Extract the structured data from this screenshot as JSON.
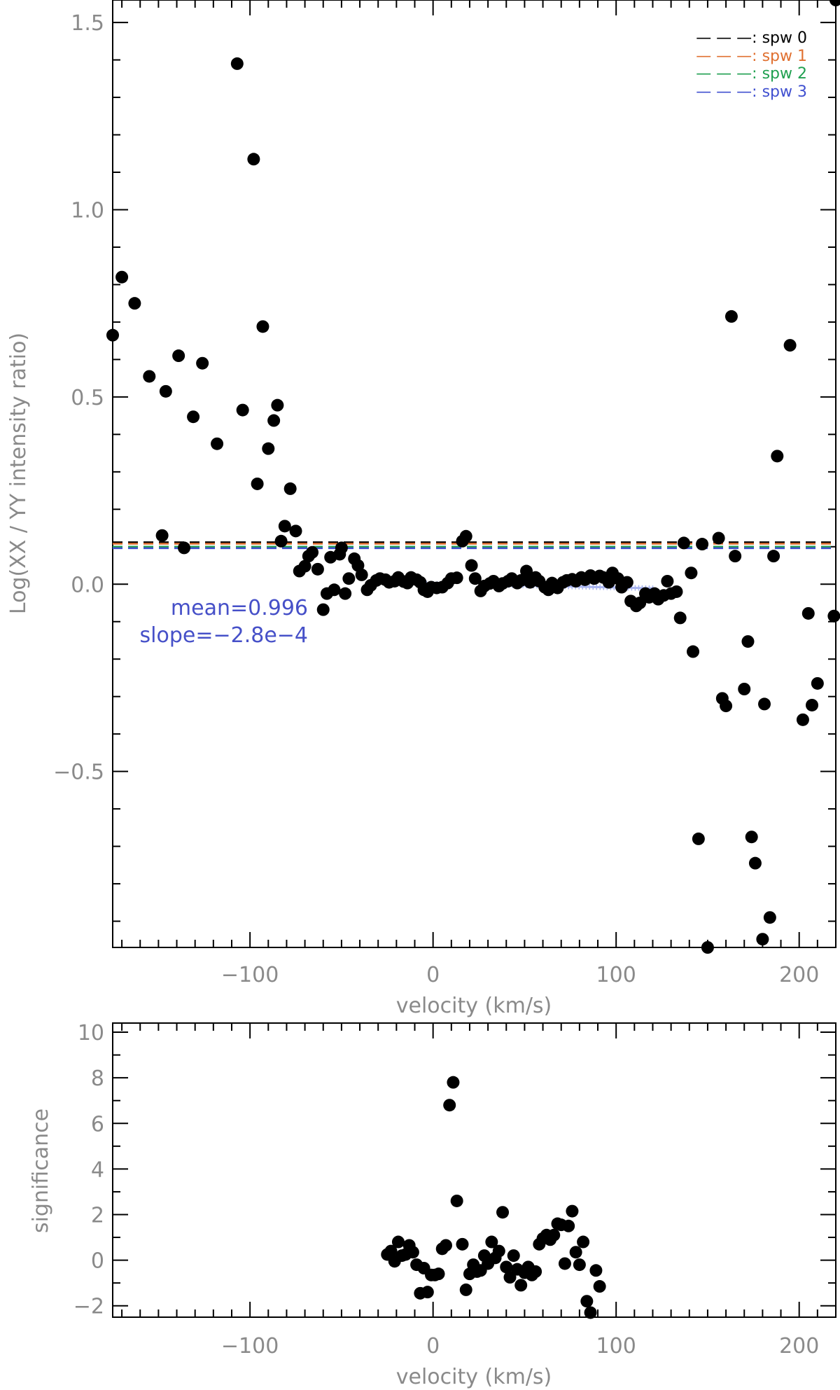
{
  "chart_data": [
    {
      "type": "scatter",
      "xlabel": "velocity (km/s)",
      "ylabel": "Log(XX / YY intensity ratio)",
      "xlim": [
        -175,
        220
      ],
      "ylim": [
        -0.97,
        1.56
      ],
      "xticks": [
        -100,
        0,
        100,
        200
      ],
      "xtick_labels": [
        "−100",
        "0",
        "100",
        "200"
      ],
      "yticks": [
        -0.5,
        0.0,
        0.5,
        1.0,
        1.5
      ],
      "ytick_labels": [
        "−0.5",
        "0.0",
        "0.5",
        "1.0",
        "1.5"
      ],
      "legend_position": "top-right",
      "reference_lines": [
        {
          "name": "spw 0",
          "label": "— — —: spw 0",
          "y": 0.112,
          "color": "#000000"
        },
        {
          "name": "spw 1",
          "label": "— — —: spw 1",
          "y": 0.108,
          "color": "#e07030"
        },
        {
          "name": "spw 2",
          "label": "— — —: spw 2",
          "y": 0.1,
          "color": "#20a050"
        },
        {
          "name": "spw 3",
          "label": "— — —: spw 3",
          "y": 0.096,
          "color": "#4050d0"
        }
      ],
      "fit_segments": [
        {
          "x": [
            -23,
            10
          ],
          "y": [
            0.004,
            -0.001
          ]
        },
        {
          "x": [
            28,
            120
          ],
          "y": [
            -0.001,
            -0.011
          ]
        }
      ],
      "annotations": [
        "mean=0.996",
        "slope=−2.8e−4"
      ],
      "annotation_color": "#4650c8",
      "points": [
        [
          -175,
          0.665
        ],
        [
          -170,
          0.82
        ],
        [
          -163,
          0.75
        ],
        [
          -155,
          0.555
        ],
        [
          -148,
          0.13
        ],
        [
          -146,
          0.515
        ],
        [
          -139,
          0.61
        ],
        [
          -136,
          0.097
        ],
        [
          -131,
          0.447
        ],
        [
          -126,
          0.59
        ],
        [
          -118,
          0.375
        ],
        [
          -107,
          1.39
        ],
        [
          -104,
          0.465
        ],
        [
          -98,
          1.135
        ],
        [
          -96,
          0.268
        ],
        [
          -93,
          0.688
        ],
        [
          -90,
          0.362
        ],
        [
          -87,
          0.437
        ],
        [
          -85,
          0.478
        ],
        [
          -83,
          0.115
        ],
        [
          -81,
          0.155
        ],
        [
          -78,
          0.255
        ],
        [
          -75,
          0.142
        ],
        [
          -73,
          0.035
        ],
        [
          -70,
          0.048
        ],
        [
          -68,
          0.075
        ],
        [
          -66,
          0.085
        ],
        [
          -63,
          0.04
        ],
        [
          -60,
          -0.068
        ],
        [
          -58,
          -0.025
        ],
        [
          -56,
          0.072
        ],
        [
          -54,
          -0.015
        ],
        [
          -51,
          0.08
        ],
        [
          -50,
          0.097
        ],
        [
          -48,
          -0.025
        ],
        [
          -46,
          0.015
        ],
        [
          -43,
          0.068
        ],
        [
          -41,
          0.05
        ],
        [
          -39,
          0.025
        ],
        [
          -36,
          -0.015
        ],
        [
          -34,
          -0.003
        ],
        [
          -31,
          0.01
        ],
        [
          -29,
          0.015
        ],
        [
          -26,
          0.012
        ],
        [
          -24,
          0.005
        ],
        [
          -21,
          0.008
        ],
        [
          -19,
          0.018
        ],
        [
          -16,
          0.007
        ],
        [
          -14,
          0.003
        ],
        [
          -12,
          0.018
        ],
        [
          -9,
          0.012
        ],
        [
          -7,
          0.005
        ],
        [
          -5,
          -0.015
        ],
        [
          -3,
          -0.02
        ],
        [
          -1,
          -0.008
        ],
        [
          2,
          -0.01
        ],
        [
          5,
          -0.008
        ],
        [
          8,
          0.003
        ],
        [
          10,
          0.015
        ],
        [
          13,
          0.017
        ],
        [
          16,
          0.115
        ],
        [
          18,
          0.128
        ],
        [
          21,
          0.05
        ],
        [
          23,
          0.015
        ],
        [
          26,
          -0.018
        ],
        [
          28,
          -0.005
        ],
        [
          31,
          0.002
        ],
        [
          33,
          0.008
        ],
        [
          36,
          -0.005
        ],
        [
          38,
          0.002
        ],
        [
          41,
          0.008
        ],
        [
          43,
          0.015
        ],
        [
          46,
          0.003
        ],
        [
          48,
          0.01
        ],
        [
          51,
          0.035
        ],
        [
          53,
          0.005
        ],
        [
          56,
          0.018
        ],
        [
          58,
          0.008
        ],
        [
          61,
          -0.008
        ],
        [
          63,
          -0.015
        ],
        [
          65,
          0.003
        ],
        [
          68,
          -0.01
        ],
        [
          71,
          0.005
        ],
        [
          73,
          0.01
        ],
        [
          76,
          0.013
        ],
        [
          78,
          0.008
        ],
        [
          81,
          0.018
        ],
        [
          83,
          0.012
        ],
        [
          86,
          0.023
        ],
        [
          88,
          0.015
        ],
        [
          91,
          0.022
        ],
        [
          93,
          0.018
        ],
        [
          96,
          0.005
        ],
        [
          98,
          0.03
        ],
        [
          101,
          0.015
        ],
        [
          103,
          -0.008
        ],
        [
          106,
          0.005
        ],
        [
          108,
          -0.045
        ],
        [
          111,
          -0.058
        ],
        [
          113,
          -0.05
        ],
        [
          116,
          -0.025
        ],
        [
          118,
          -0.035
        ],
        [
          121,
          -0.025
        ],
        [
          123,
          -0.04
        ],
        [
          126,
          -0.03
        ],
        [
          128,
          0.008
        ],
        [
          130,
          -0.025
        ],
        [
          133,
          -0.02
        ],
        [
          135,
          -0.09
        ],
        [
          137,
          0.11
        ],
        [
          141,
          0.03
        ],
        [
          142,
          -0.18
        ],
        [
          145,
          -0.68
        ],
        [
          147,
          0.107
        ],
        [
          150,
          -0.97
        ],
        [
          156,
          0.123
        ],
        [
          158,
          -0.305
        ],
        [
          160,
          -0.325
        ],
        [
          163,
          0.715
        ],
        [
          165,
          0.075
        ],
        [
          170,
          -0.28
        ],
        [
          172,
          -0.153
        ],
        [
          174,
          -0.675
        ],
        [
          176,
          -0.745
        ],
        [
          180,
          -0.948
        ],
        [
          181,
          -0.32
        ],
        [
          184,
          -0.89
        ],
        [
          186,
          0.075
        ],
        [
          188,
          0.342
        ],
        [
          195,
          0.638
        ],
        [
          202,
          -0.362
        ],
        [
          205,
          -0.078
        ],
        [
          207,
          -0.323
        ],
        [
          210,
          -0.265
        ],
        [
          219,
          -0.085
        ],
        [
          220,
          1.56
        ]
      ]
    },
    {
      "type": "scatter",
      "xlabel": "velocity (km/s)",
      "ylabel": "significance",
      "xlim": [
        -175,
        220
      ],
      "ylim": [
        -2.5,
        10.4
      ],
      "xticks": [
        -100,
        0,
        100,
        200
      ],
      "xtick_labels": [
        "−100",
        "0",
        "100",
        "200"
      ],
      "yticks": [
        -2,
        0,
        2,
        4,
        6,
        8,
        10
      ],
      "ytick_labels": [
        "−2",
        "0",
        "2",
        "4",
        "6",
        "8",
        "10"
      ],
      "points": [
        [
          -25,
          0.25
        ],
        [
          -23,
          0.4
        ],
        [
          -21,
          -0.05
        ],
        [
          -19,
          0.8
        ],
        [
          -17,
          0.2
        ],
        [
          -15,
          0.25
        ],
        [
          -13,
          0.65
        ],
        [
          -11,
          0.35
        ],
        [
          -9,
          -0.2
        ],
        [
          -7,
          -1.45
        ],
        [
          -5,
          -0.35
        ],
        [
          -3,
          -1.4
        ],
        [
          -1,
          -0.65
        ],
        [
          1,
          -0.65
        ],
        [
          3,
          -0.6
        ],
        [
          5,
          0.5
        ],
        [
          7,
          0.65
        ],
        [
          9,
          6.8
        ],
        [
          11,
          7.8
        ],
        [
          13,
          2.6
        ],
        [
          16,
          0.7
        ],
        [
          18,
          -1.3
        ],
        [
          20,
          -0.6
        ],
        [
          22,
          -0.2
        ],
        [
          24,
          -0.5
        ],
        [
          26,
          -0.45
        ],
        [
          28,
          0.2
        ],
        [
          30,
          -0.15
        ],
        [
          32,
          0.8
        ],
        [
          34,
          0.1
        ],
        [
          36,
          0.4
        ],
        [
          38,
          2.1
        ],
        [
          40,
          -0.3
        ],
        [
          42,
          -0.75
        ],
        [
          44,
          0.2
        ],
        [
          46,
          -0.4
        ],
        [
          48,
          -1.1
        ],
        [
          50,
          -0.55
        ],
        [
          52,
          -0.3
        ],
        [
          54,
          -0.65
        ],
        [
          56,
          -0.5
        ],
        [
          58,
          0.7
        ],
        [
          60,
          0.95
        ],
        [
          62,
          1.1
        ],
        [
          64,
          0.9
        ],
        [
          66,
          1.1
        ],
        [
          68,
          1.6
        ],
        [
          70,
          1.55
        ],
        [
          72,
          -0.15
        ],
        [
          74,
          1.5
        ],
        [
          76,
          2.15
        ],
        [
          78,
          0.35
        ],
        [
          80,
          -0.2
        ],
        [
          82,
          0.8
        ],
        [
          84,
          -1.8
        ],
        [
          86,
          -2.3
        ],
        [
          89,
          -0.45
        ],
        [
          91,
          -1.15
        ]
      ]
    }
  ]
}
